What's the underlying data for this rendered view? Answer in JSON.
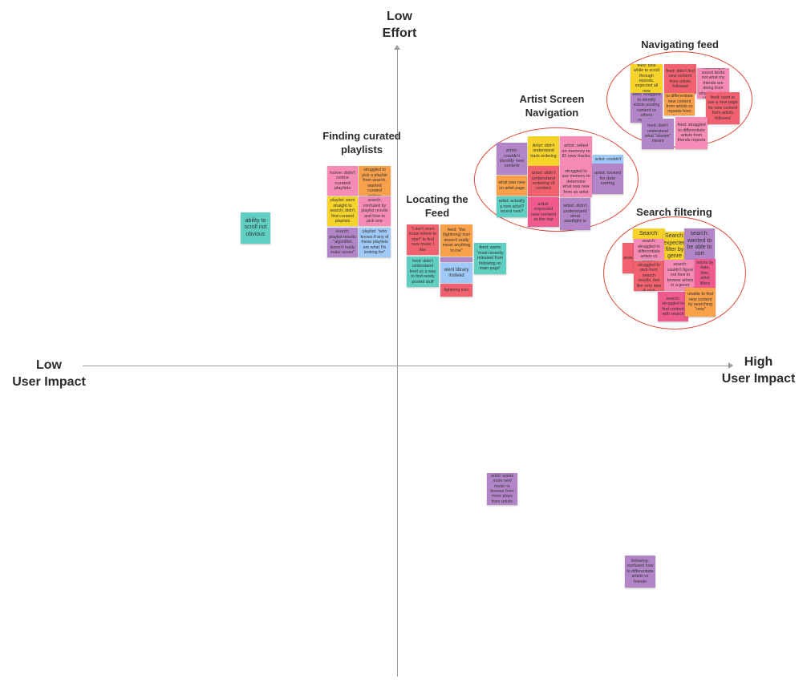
{
  "axes": {
    "top": "Low\nEffort",
    "left": "Low\nUser Impact",
    "right": "High\nUser Impact"
  },
  "clusters": {
    "navigating_feed": "Navigating feed",
    "artist_screen": "Artist Screen\nNavigation",
    "curated_playlists": "Finding curated\nplaylists",
    "locating_feed": "Locating the\nFeed",
    "search_filtering": "Search filtering"
  },
  "notes": {
    "scroll": "ability to scroll not obvious",
    "pl1": "home: didn't notice curated playlists",
    "pl2": "search: struggled to pick a playlist from search, wanted curated options",
    "pl3": "playlist: went straight to search; didn't find curated playlists",
    "pl4": "search: confused by playlist results and how to pick one",
    "pl5": "search: playlist results \"algorithm doesn't really make sense\"",
    "pl6": "playlist: \"who knows if any of these playlists are what I'm looking for\"",
    "lf1": "\"I don't even know where to start\" to find new music I like",
    "lf2": "feed: \"the (lightning) icon doesn't really mean anything to me\"",
    "lf3": "feed: didn't understand feed as a way to find newly posted stuff",
    "lf4": "went library instead",
    "lf5": "lightning icon",
    "lf6": "feed: wants \"most recently released from following on main page\"",
    "as1": "artist: couldn't identify new content",
    "as2": "Artist: didn't understand track ordering",
    "as3": "artist: relied on memory to ID new tracks",
    "as4": "artist: couldn't",
    "as5": "artist: looked for date sorting",
    "as6": "what was new on artist page",
    "as7": "artist: didn't understand ordering of content",
    "as8": "struggled to use memory to determine what was new from an artist",
    "as9": "artist: actually a new artist? recent new?",
    "as10": "artist: expected new content at the top",
    "as11": "artist: didn't understand what spotlight is",
    "nf1": "feed: took while to scroll through reposts, expected all new",
    "nf2": "feed: didn't find new content from artists followed",
    "nf3": "feed: \"reposting is sound kinda not what my friends are doing from what the artists I follow are doing\"",
    "nf4": "feed: struggled to identify artists posting content vs others reposting",
    "nf5": "feed: unable to differentiate new content from artists vs reposts from friends",
    "nf6": "feed: want to see a new page for new content from artists followed",
    "nf7": "feed: didn't understand what \"stream\" meant",
    "nf8": "feed: struggled to differentiate artists from friends reposts",
    "sf1": "Search:",
    "sf2": "Search: expected filter by genre",
    "sf3": "search: wanted to be able to sort",
    "sf4": "artist",
    "sf5": "search: struggled to differentiate artists vs",
    "sf6": "search: struggled to pick from search results, feel like very new & cool",
    "sf7": "search: couldn't figure out how to browse artists in a genre",
    "sf8": "wants by date, time, artist filters",
    "sf9": "search: struggled to find content with search",
    "sf10": "unable to find new content by searching \"new\"",
    "lone1": "artist: wants more new music to browse from more plays from artists",
    "lone2": "following: confused how to differentiate artists vs friends"
  }
}
